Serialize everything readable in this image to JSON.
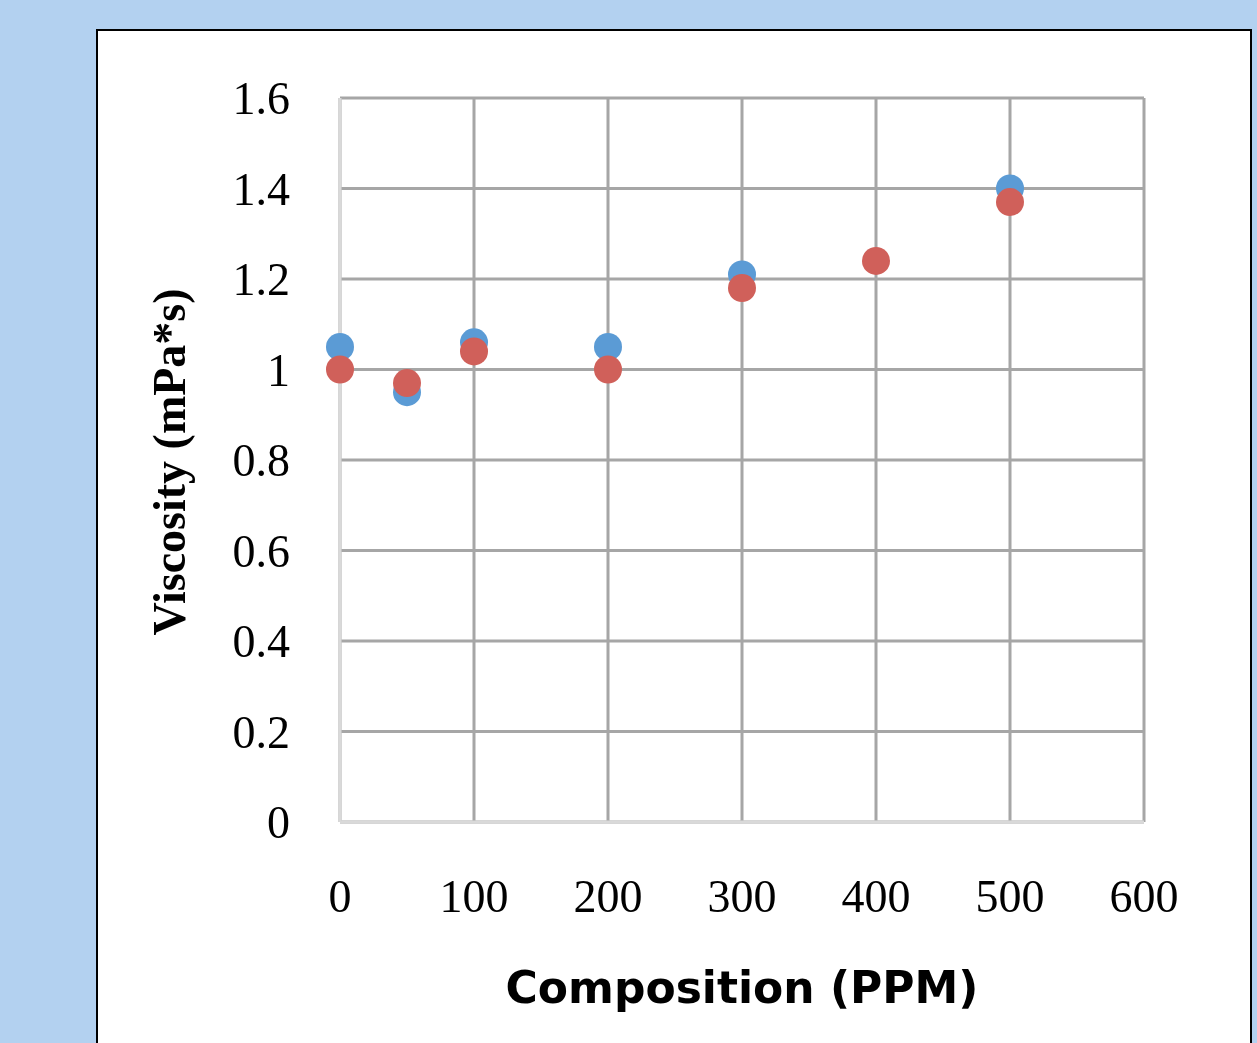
{
  "chart_data": {
    "type": "scatter",
    "xlabel": "Composition (PPM)",
    "ylabel": "Viscosity (mPa*s)",
    "x": [
      0,
      50,
      100,
      200,
      300,
      400,
      500
    ],
    "series": [
      {
        "color": "#5b9bd5",
        "values": [
          1.05,
          0.95,
          1.06,
          1.05,
          1.21,
          null,
          1.4
        ]
      },
      {
        "color": "#d0605a",
        "values": [
          1.0,
          0.97,
          1.04,
          1.0,
          1.18,
          1.24,
          1.37
        ]
      }
    ],
    "xlim": [
      0,
      600
    ],
    "xticks": [
      0,
      100,
      200,
      300,
      400,
      500,
      600
    ],
    "ylim": [
      0,
      1.6
    ],
    "yticks": [
      0,
      0.2,
      0.4,
      0.6,
      0.8,
      1,
      1.2,
      1.4,
      1.6
    ],
    "grid": true,
    "marker": "circle"
  }
}
